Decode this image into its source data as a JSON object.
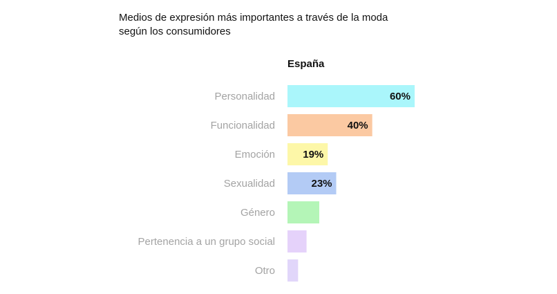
{
  "chart_data": {
    "type": "bar",
    "orientation": "horizontal",
    "title_lines": [
      "Medios de expresión más importantes a través de la moda",
      "según los consumidores"
    ],
    "panel_label": "España",
    "categories": [
      "Personalidad",
      "Funcionalidad",
      "Emoción",
      "Sexualidad",
      "Género",
      "Pertenencia a un grupo social",
      "Otro"
    ],
    "values": [
      60,
      40,
      19,
      23,
      15,
      9,
      5
    ],
    "data_labels": [
      "60%",
      "40%",
      "19%",
      "23%",
      "",
      "",
      ""
    ],
    "colors": [
      "#aaf6fb",
      "#fbc9a2",
      "#fdf7a8",
      "#b3cbf5",
      "#b4f5b7",
      "#e5d2fa",
      "#e1d6fa"
    ],
    "xlim": [
      0,
      60
    ],
    "grid": false,
    "legend": "none"
  }
}
